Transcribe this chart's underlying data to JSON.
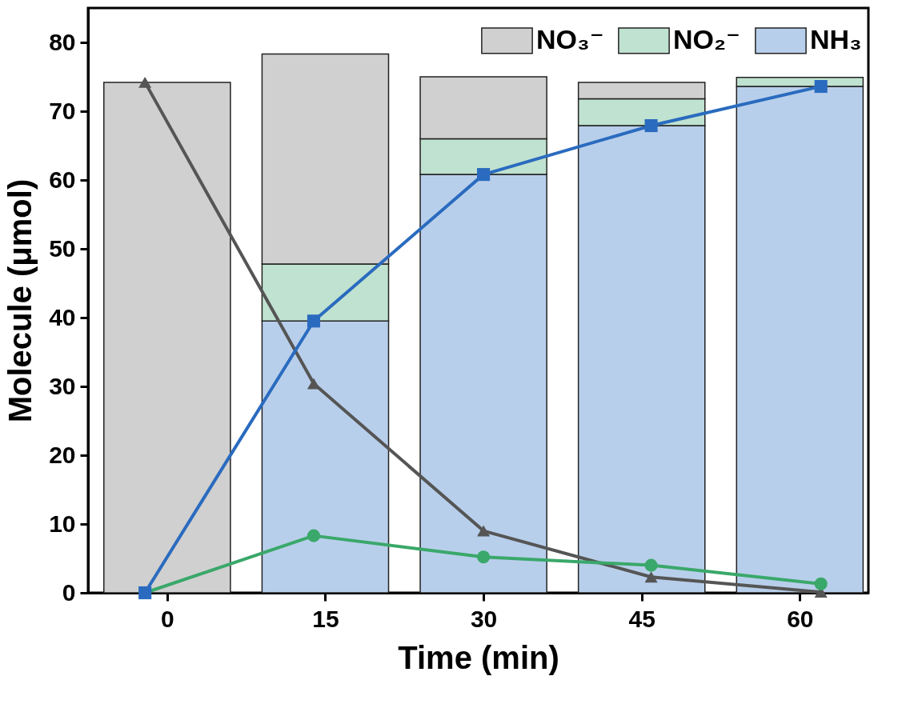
{
  "chart_data": {
    "type": "bar",
    "xlabel": "Time (min)",
    "ylabel": "Molecule (μmol)",
    "x": [
      0,
      15,
      30,
      45,
      60
    ],
    "xlim": [
      -7.5,
      66.5
    ],
    "xticks": [
      0,
      15,
      30,
      45,
      60
    ],
    "ylim": [
      0,
      85
    ],
    "yticks": [
      0,
      10,
      20,
      30,
      40,
      50,
      60,
      70,
      80
    ],
    "stacked": true,
    "legend": "top right",
    "grid": false,
    "series": [
      {
        "name": "NH₃",
        "color": "#b8cfeb",
        "values": [
          0,
          39.5,
          60.8,
          67.9,
          73.6
        ]
      },
      {
        "name": "NO₂⁻",
        "color": "#c0e2d0",
        "values": [
          0,
          8.3,
          5.2,
          3.9,
          1.3
        ]
      },
      {
        "name": "NO₃⁻",
        "color": "#d0d0d0",
        "values": [
          74.2,
          30.5,
          9.0,
          2.4,
          0
        ]
      },
      {
        "type": "line",
        "color": "#555555",
        "marker": "triangle",
        "x": [
          -2.1,
          13.9,
          30,
          45.9,
          62
        ],
        "values": [
          74.2,
          30.4,
          9.0,
          2.3,
          0.1
        ]
      },
      {
        "type": "line",
        "color": "#3aa86a",
        "marker": "circle",
        "x": [
          -2.1,
          13.9,
          30,
          45.9,
          62
        ],
        "values": [
          0,
          8.3,
          5.2,
          4.0,
          1.3
        ]
      },
      {
        "type": "line",
        "color": "#2a6bbf",
        "marker": "square",
        "x": [
          -2.1,
          13.9,
          30,
          45.9,
          62
        ],
        "values": [
          0,
          39.5,
          60.8,
          67.9,
          73.6
        ]
      }
    ]
  }
}
